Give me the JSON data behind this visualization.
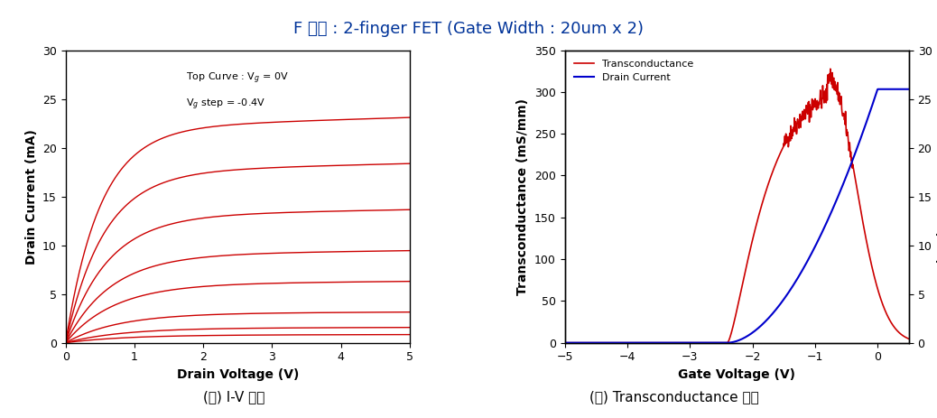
{
  "title": "F 소자 : 2-finger FET (Gate Width : 20um x 2)",
  "title_color": "#003399",
  "title_fontsize": 13,
  "left_caption": "(가) I-V 곱선",
  "right_caption": "(나) Transconductance 곱선",
  "caption_fontsize": 12,
  "iv": {
    "xlabel": "Drain Voltage (V)",
    "ylabel": "Drain Current (mA)",
    "xlim": [
      0,
      5
    ],
    "ylim": [
      0,
      30
    ],
    "xticks": [
      0,
      1,
      2,
      3,
      4,
      5
    ],
    "yticks": [
      0,
      5,
      10,
      15,
      20,
      25,
      30
    ],
    "annotation_line1": "Top Curve : V$_g$ = 0V",
    "annotation_line2": "V$_g$ step = -0.4V",
    "curve_color": "#cc0000",
    "Vg_values": [
      0.0,
      -0.4,
      -0.8,
      -1.2,
      -1.6,
      -2.0,
      -2.4,
      -2.8
    ],
    "Idss_values": [
      22.0,
      17.5,
      13.0,
      9.0,
      6.0,
      3.0,
      1.5,
      0.8
    ],
    "Vp_values": [
      0.5,
      0.55,
      0.6,
      0.65,
      0.7,
      0.75,
      0.8,
      0.85
    ],
    "slope_end": [
      22.2,
      17.7,
      13.2,
      9.2,
      6.1,
      3.05,
      1.52,
      0.82
    ]
  },
  "gm": {
    "xlabel": "Gate Voltage (V)",
    "ylabel_left": "Transconductance (mS/mm)",
    "ylabel_right": "Drain Current (mA)",
    "xlim": [
      -5,
      0.5
    ],
    "ylim_left": [
      0,
      350
    ],
    "ylim_right": [
      0,
      30
    ],
    "xticks": [
      -5,
      -4,
      -3,
      -2,
      -1,
      0
    ],
    "yticks_left": [
      0,
      50,
      100,
      150,
      200,
      250,
      300,
      350
    ],
    "yticks_right": [
      0,
      5,
      10,
      15,
      20,
      25,
      30
    ],
    "gm_color": "#cc0000",
    "id_color": "#0000cc",
    "legend_transconductance": "Transconductance",
    "legend_drain_current": "Drain Current",
    "Vth": -2.4,
    "gm_peak": 320,
    "gm_peak_vg": -0.8,
    "Id_sat": 26.0
  }
}
